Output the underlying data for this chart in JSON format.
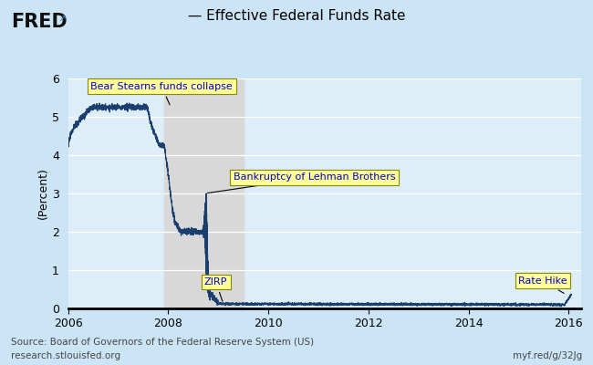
{
  "title_line": "— Effective Federal Funds Rate",
  "ylabel": "(Percent)",
  "source_line1": "Source: Board of Governors of the Federal Reserve System (US)",
  "source_line2": "research.stlouisfed.org",
  "source_right": "myf.red/g/32Jg",
  "bg_color": "#cce5f6",
  "plot_bg_color": "#ddeef8",
  "line_color": "#1a3f6f",
  "recession_color": "#d8d8d8",
  "recession_start": 2007.92,
  "recession_end": 2009.5,
  "ylim": [
    0,
    6
  ],
  "xlim_start": 2006.0,
  "xlim_end": 2016.25,
  "xticks": [
    2006,
    2008,
    2010,
    2012,
    2014,
    2016
  ],
  "yticks": [
    0,
    1,
    2,
    3,
    4,
    5,
    6
  ],
  "annot_facecolor": "#ffff99",
  "annot_edgecolor": "#888800",
  "annot_textcolor": "#0000cc",
  "fred_color": "#111111"
}
